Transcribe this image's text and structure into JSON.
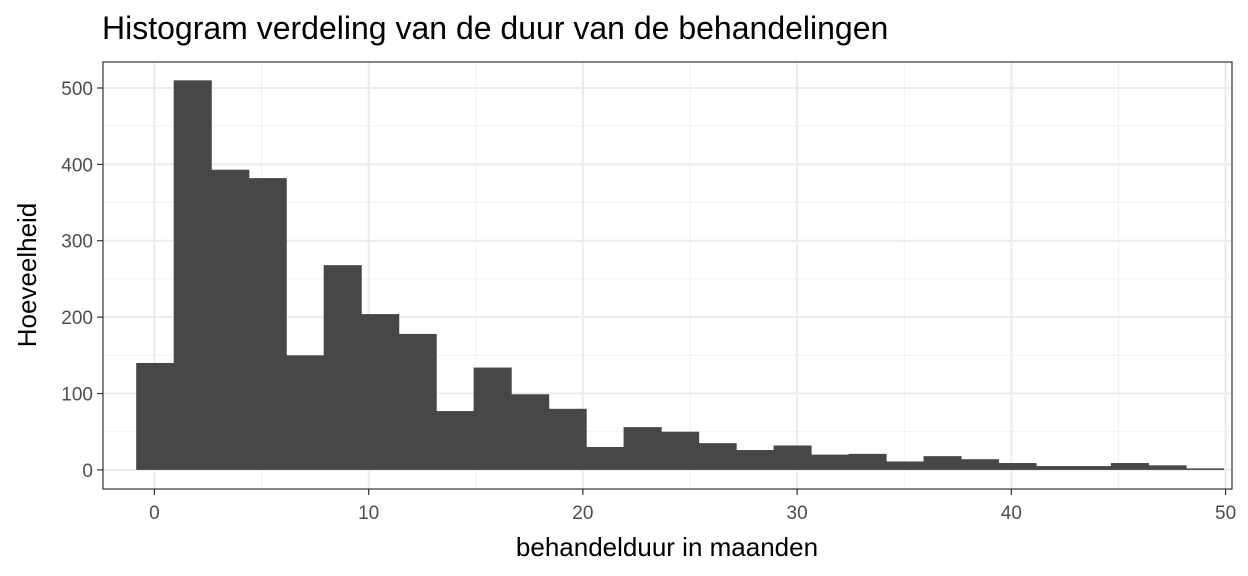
{
  "chart_data": {
    "type": "bar",
    "title": "Histogram verdeling van de duur van de behandelingen",
    "xlabel": "behandelduur in maanden",
    "ylabel": "Hoeveelheid",
    "xlim": [
      -2.4,
      50.3
    ],
    "ylim": [
      -25,
      534
    ],
    "x_ticks": [
      0,
      10,
      20,
      30,
      40,
      50
    ],
    "y_ticks": [
      0,
      100,
      200,
      300,
      400,
      500
    ],
    "grid": true,
    "bar_color": "#474747",
    "bin_width": 1.75,
    "bins_start": -0.85,
    "values": [
      140,
      510,
      393,
      382,
      150,
      268,
      204,
      178,
      77,
      134,
      99,
      80,
      30,
      56,
      50,
      35,
      26,
      32,
      20,
      21,
      11,
      18,
      14,
      9,
      5,
      5,
      9,
      6,
      2
    ]
  }
}
